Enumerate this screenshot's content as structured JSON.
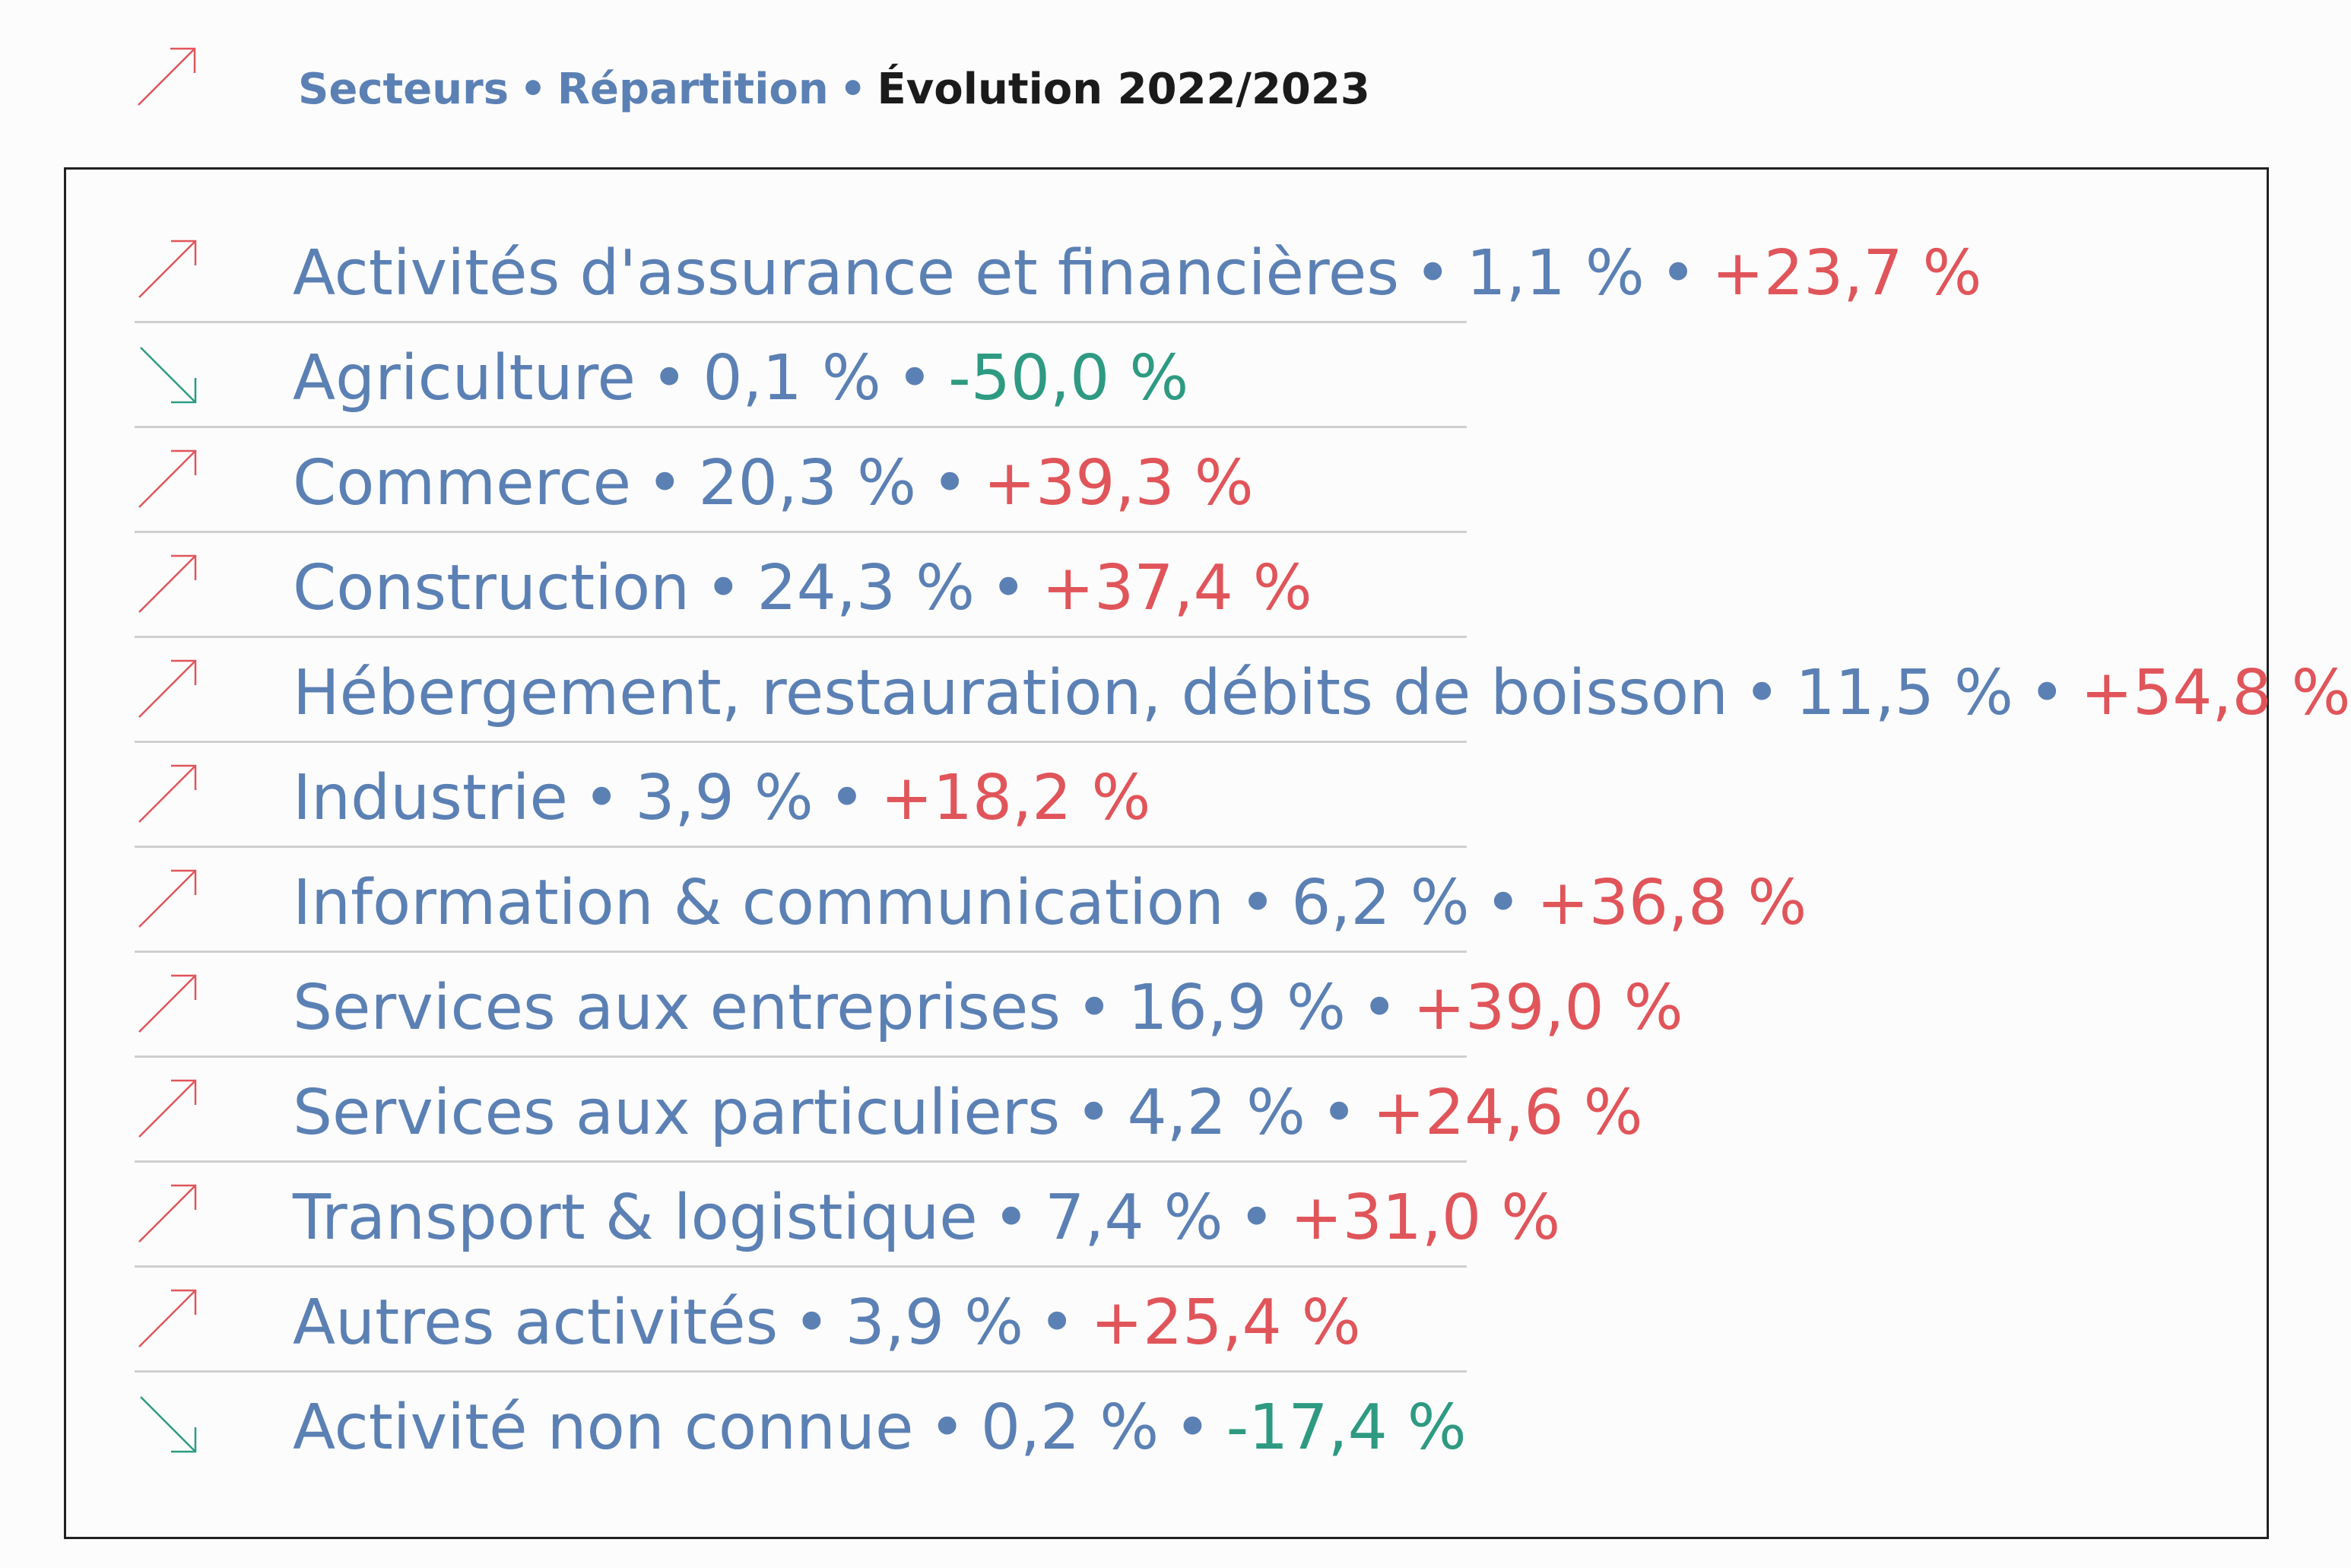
{
  "colors": {
    "label": "#5b80b4",
    "positive": "#e0555a",
    "negative": "#2e9a82",
    "header_current": "#1b1b1b"
  },
  "header": {
    "icon": "arrow-up-right-icon",
    "crumbs": [
      "Secteurs",
      "Répartition"
    ],
    "current": "Évolution 2022/2023",
    "separator": "•"
  },
  "rows": [
    {
      "sector": "Activités d'assurance et financières",
      "share": "1,1 %",
      "change": "+23,7 %",
      "trend": "up"
    },
    {
      "sector": "Agriculture",
      "share": "0,1 %",
      "change": "-50,0 %",
      "trend": "down"
    },
    {
      "sector": "Commerce",
      "share": "20,3 %",
      "change": "+39,3 %",
      "trend": "up"
    },
    {
      "sector": "Construction",
      "share": "24,3 %",
      "change": "+37,4 %",
      "trend": "up"
    },
    {
      "sector": "Hébergement, restauration, débits de boisson",
      "share": "11,5 %",
      "change": "+54,8 %",
      "trend": "up"
    },
    {
      "sector": "Industrie",
      "share": "3,9 %",
      "change": "+18,2 %",
      "trend": "up"
    },
    {
      "sector": "Information & communication",
      "share": "6,2 %",
      "change": "+36,8 %",
      "trend": "up"
    },
    {
      "sector": "Services aux entreprises",
      "share": "16,9 %",
      "change": "+39,0 %",
      "trend": "up"
    },
    {
      "sector": "Services aux particuliers",
      "share": "4,2 %",
      "change": "+24,6 %",
      "trend": "up"
    },
    {
      "sector": "Transport & logistique",
      "share": "7,4 %",
      "change": "+31,0 %",
      "trend": "up"
    },
    {
      "sector": "Autres activités",
      "share": "3,9 %",
      "change": "+25,4 %",
      "trend": "up"
    },
    {
      "sector": "Activité non connue",
      "share": "0,2 %",
      "change": "-17,4 %",
      "trend": "down"
    }
  ]
}
